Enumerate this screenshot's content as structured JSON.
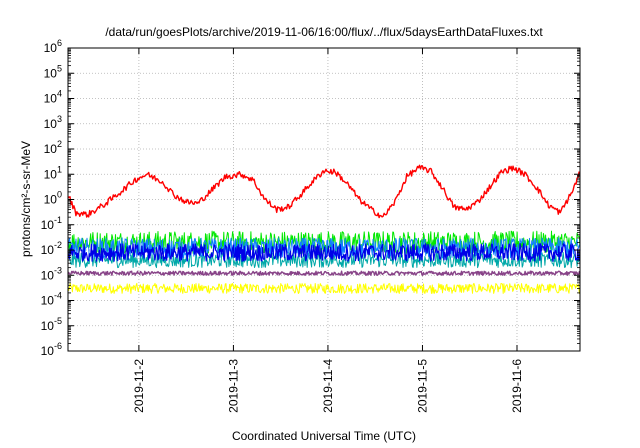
{
  "chart_data": {
    "type": "line",
    "title": "/data/run/goesPlots/archive/2019-11-06/16:00/flux/../flux/5daysEarthDataFluxes.txt",
    "xlabel": "Coordinated Universal Time (UTC)",
    "ylabel": "protons/cm²-s-sr-MeV",
    "yscale": "log",
    "ylim": [
      1e-06,
      1000000.0
    ],
    "xlim": [
      "2019-11-01T06:00",
      "2019-11-06T16:00"
    ],
    "grid": true,
    "legend": "none",
    "ytick_labels": [
      {
        "base": "10",
        "exp": "-6"
      },
      {
        "base": "10",
        "exp": "-5"
      },
      {
        "base": "10",
        "exp": "-4"
      },
      {
        "base": "10",
        "exp": "-3"
      },
      {
        "base": "10",
        "exp": "-2"
      },
      {
        "base": "10",
        "exp": "-1"
      },
      {
        "base": "10",
        "exp": "0"
      },
      {
        "base": "10",
        "exp": "1"
      },
      {
        "base": "10",
        "exp": "2"
      },
      {
        "base": "10",
        "exp": "3"
      },
      {
        "base": "10",
        "exp": "4"
      },
      {
        "base": "10",
        "exp": "5"
      },
      {
        "base": "10",
        "exp": "6"
      }
    ],
    "xtick_labels": [
      "2019-11-2",
      "2019-11-3",
      "2019-11-4",
      "2019-11-5",
      "2019-11-6"
    ],
    "xtick_dates": [
      "2019-11-02T00:00",
      "2019-11-03T00:00",
      "2019-11-04T00:00",
      "2019-11-05T00:00",
      "2019-11-06T00:00"
    ],
    "series": [
      {
        "color": "#ff0000",
        "x": [
          "2019-11-01T06:00",
          "2019-11-01T08:00",
          "2019-11-01T11:00",
          "2019-11-01T15:00",
          "2019-11-01T19:00",
          "2019-11-01T23:00",
          "2019-11-02T02:00",
          "2019-11-02T06:00",
          "2019-11-02T09:00",
          "2019-11-02T12:00",
          "2019-11-02T15:00",
          "2019-11-02T18:00",
          "2019-11-02T22:00",
          "2019-11-03T02:00",
          "2019-11-03T05:00",
          "2019-11-03T08:00",
          "2019-11-03T11:00",
          "2019-11-03T14:00",
          "2019-11-03T17:00",
          "2019-11-03T20:00",
          "2019-11-03T23:00",
          "2019-11-04T02:00",
          "2019-11-04T05:00",
          "2019-11-04T08:00",
          "2019-11-04T11:00",
          "2019-11-04T14:00",
          "2019-11-04T17:00",
          "2019-11-04T20:00",
          "2019-11-04T23:00",
          "2019-11-05T02:00",
          "2019-11-05T05:00",
          "2019-11-05T08:00",
          "2019-11-05T11:00",
          "2019-11-05T14:00",
          "2019-11-05T17:00",
          "2019-11-05T20:00",
          "2019-11-05T23:00",
          "2019-11-06T02:00",
          "2019-11-06T05:00",
          "2019-11-06T08:00",
          "2019-11-06T11:00",
          "2019-11-06T14:00",
          "2019-11-06T16:00"
        ],
        "y": [
          1.5,
          0.3,
          0.25,
          0.6,
          1.8,
          6,
          10,
          5,
          1.5,
          0.8,
          0.7,
          2,
          8,
          10,
          6,
          1,
          0.4,
          0.5,
          1.5,
          5,
          14,
          12,
          4,
          1,
          0.4,
          0.2,
          0.8,
          8,
          18,
          14,
          3,
          0.5,
          0.4,
          0.8,
          3,
          12,
          18,
          10,
          3,
          0.6,
          0.3,
          2,
          12
        ]
      },
      {
        "color": "#00e800",
        "x": [
          "2019-11-01T06:00",
          "2019-11-06T16:00"
        ],
        "y": [
          0.02,
          0.02
        ]
      },
      {
        "color": "#00a8a8",
        "x": [
          "2019-11-01T06:00",
          "2019-11-06T16:00"
        ],
        "y": [
          0.004,
          0.004
        ]
      },
      {
        "color": "#1080ff",
        "x": [
          "2019-11-01T06:00",
          "2019-11-06T16:00"
        ],
        "y": [
          0.012,
          0.012
        ]
      },
      {
        "color": "#0000e8",
        "x": [
          "2019-11-01T06:00",
          "2019-11-06T16:00"
        ],
        "y": [
          0.008,
          0.008
        ]
      },
      {
        "color": "#884488",
        "x": [
          "2019-11-01T06:00",
          "2019-11-06T16:00"
        ],
        "y": [
          0.0012,
          0.0012
        ]
      },
      {
        "color": "#ffff00",
        "x": [
          "2019-11-01T06:00",
          "2019-11-06T16:00"
        ],
        "y": [
          0.0003,
          0.0003
        ]
      }
    ]
  }
}
